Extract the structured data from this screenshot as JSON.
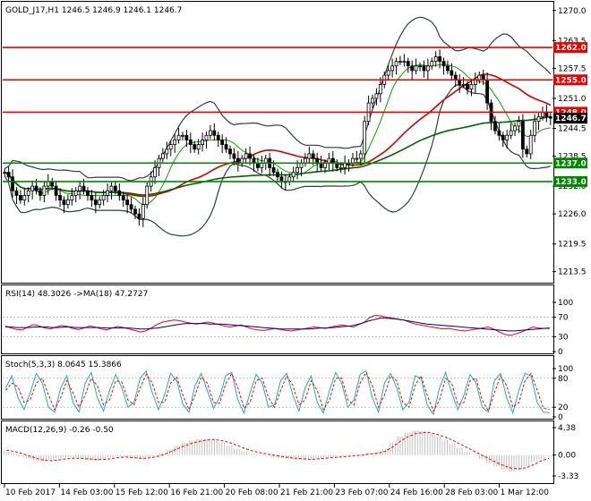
{
  "colors": {
    "frame": "#000000",
    "candle": "#000000",
    "bollinger": "#2f3f3f",
    "ma_fast": "#d40000",
    "ma_slow": "#00aa00",
    "ma_long": "#006600",
    "resistance": "#ee0000",
    "support": "#008800",
    "rsi": "#ff0000",
    "rsi_ma": "#000080",
    "stoch_main": "#20b2aa",
    "stoch_signal": "#ff0000",
    "macd_hist": "#c0c0c0",
    "macd_signal": "#ff0000",
    "current_price_tag": "#000000"
  },
  "chart_data": [
    {
      "type": "line",
      "panel": "price",
      "title": "GOLD_J17,H1  1246.5 1246.9 1246.1 1246.7",
      "ylim": [
        1211.5,
        1271.5
      ],
      "y_ticks": [
        {
          "value": 1270.0,
          "label": "1270.0"
        },
        {
          "value": 1263.5,
          "label": "1263.5"
        },
        {
          "value": 1257.5,
          "label": "1257.5"
        },
        {
          "value": 1251.0,
          "label": "1251.0"
        },
        {
          "value": 1244.5,
          "label": "1244.5"
        },
        {
          "value": 1238.5,
          "label": "1238.5"
        },
        {
          "value": 1232.0,
          "label": "1232.0"
        },
        {
          "value": 1226.0,
          "label": "1226.0"
        },
        {
          "value": 1219.5,
          "label": "1219.5"
        },
        {
          "value": 1213.5,
          "label": "1213.5"
        }
      ],
      "levels": [
        {
          "value": 1262.0,
          "label": "1262.0",
          "kind": "resistance"
        },
        {
          "value": 1255.0,
          "label": "1255.0",
          "kind": "resistance"
        },
        {
          "value": 1248.0,
          "label": "1248.0",
          "kind": "resistance"
        },
        {
          "value": 1237.0,
          "label": "1237.0",
          "kind": "support"
        },
        {
          "value": 1233.0,
          "label": "1233.0",
          "kind": "support"
        }
      ],
      "current_price": {
        "value": 1246.7,
        "label": "1246.7"
      },
      "series": [
        {
          "key": "close",
          "values": [
            1235,
            1234,
            1231,
            1230,
            1229,
            1230,
            1231,
            1232,
            1231,
            1230,
            1232,
            1233,
            1232,
            1230,
            1229,
            1228,
            1229,
            1230,
            1231,
            1232,
            1231,
            1230,
            1229,
            1228,
            1229,
            1230,
            1231,
            1232,
            1231,
            1230,
            1229,
            1228,
            1227,
            1226,
            1225,
            1228,
            1232,
            1234,
            1236,
            1238,
            1239,
            1240,
            1241,
            1242,
            1243,
            1243,
            1242,
            1241,
            1240,
            1241,
            1242,
            1243,
            1244,
            1243,
            1242,
            1241,
            1240,
            1239,
            1238,
            1237,
            1238,
            1239,
            1238,
            1237,
            1236,
            1237,
            1238,
            1236,
            1235,
            1234,
            1233,
            1233,
            1234,
            1235,
            1236,
            1237,
            1238,
            1239,
            1238,
            1237,
            1236,
            1237,
            1238,
            1237,
            1236,
            1236,
            1237,
            1237,
            1238,
            1238,
            1239,
            1246,
            1250,
            1251,
            1252,
            1254,
            1256,
            1257,
            1258,
            1259,
            1259,
            1259,
            1258,
            1257,
            1258,
            1258,
            1257,
            1258,
            1259,
            1260,
            1259,
            1258,
            1257,
            1256,
            1255,
            1254,
            1254,
            1253,
            1254,
            1255,
            1256,
            1255,
            1250,
            1246,
            1244,
            1243,
            1242,
            1243,
            1244,
            1245,
            1246,
            1240,
            1239,
            1243,
            1246,
            1247,
            1248,
            1247,
            1246.7
          ]
        }
      ]
    },
    {
      "type": "line",
      "panel": "rsi",
      "title": "RSI(14) 48.3026  ->MA(18) 47.2727",
      "ylim": [
        0,
        100
      ],
      "y_ticks": [
        {
          "value": 100,
          "label": "100"
        },
        {
          "value": 70,
          "label": "70"
        },
        {
          "value": 30,
          "label": "30"
        },
        {
          "value": 0,
          "label": "0"
        }
      ],
      "series": [
        {
          "key": "rsi",
          "values": [
            52,
            48,
            45,
            44,
            50,
            55,
            52,
            48,
            46,
            50,
            53,
            51,
            47,
            45,
            48,
            52,
            50,
            46,
            44,
            48,
            51,
            49,
            46,
            43,
            40,
            42,
            48,
            55,
            60,
            62,
            64,
            63,
            60,
            58,
            56,
            58,
            60,
            58,
            55,
            52,
            50,
            52,
            54,
            50,
            46,
            44,
            43,
            45,
            47,
            45,
            43,
            42,
            44,
            46,
            48,
            50,
            49,
            47,
            50,
            52,
            54,
            52,
            50,
            55,
            60,
            70,
            74,
            72,
            70,
            68,
            66,
            64,
            60,
            56,
            54,
            52,
            50,
            48,
            46,
            47,
            45,
            43,
            42,
            44,
            46,
            48,
            50,
            46,
            40,
            35,
            33,
            36,
            40,
            45,
            50,
            48,
            47,
            48.3
          ]
        },
        {
          "key": "rsi_ma",
          "values": [
            50,
            50,
            49,
            49,
            49,
            50,
            50,
            50,
            49,
            49,
            50,
            50,
            49,
            49,
            49,
            49,
            49,
            48,
            48,
            48,
            48,
            48,
            47,
            46,
            46,
            47,
            48,
            50,
            52,
            54,
            56,
            57,
            57,
            57,
            57,
            56,
            56,
            56,
            55,
            54,
            53,
            52,
            51,
            50,
            49,
            48,
            47,
            46,
            46,
            46,
            46,
            46,
            46,
            47,
            48,
            48,
            49,
            50,
            51,
            52,
            55,
            58,
            62,
            65,
            68,
            68,
            67,
            66,
            64,
            62,
            60,
            58,
            56,
            55,
            54,
            53,
            52,
            51,
            50,
            49,
            48,
            47,
            46,
            45,
            44,
            43,
            42,
            42,
            43,
            44,
            45,
            46,
            47,
            47.27
          ]
        }
      ]
    },
    {
      "type": "line",
      "panel": "stochastic",
      "title": "Stoch(5,3,3) 8.0645 15.3866",
      "ylim": [
        0,
        100
      ],
      "y_ticks": [
        {
          "value": 100,
          "label": "100"
        },
        {
          "value": 80,
          "label": "80"
        },
        {
          "value": 20,
          "label": "20"
        },
        {
          "value": 0,
          "label": "0"
        }
      ],
      "series": [
        {
          "key": "stoch_main",
          "values": [
            60,
            85,
            40,
            15,
            50,
            90,
            70,
            20,
            10,
            60,
            85,
            30,
            10,
            70,
            92,
            40,
            12,
            55,
            88,
            60,
            20,
            30,
            80,
            95,
            50,
            15,
            45,
            90,
            75,
            25,
            10,
            65,
            90,
            55,
            18,
            40,
            85,
            92,
            35,
            8,
            50,
            88,
            70,
            20,
            25,
            75,
            90,
            45,
            12,
            60,
            85,
            30,
            8,
            55,
            92,
            70,
            20,
            35,
            88,
            95,
            40,
            10,
            70,
            90,
            60,
            15,
            30,
            85,
            80,
            25,
            5,
            60,
            92,
            50,
            15,
            45,
            88,
            70,
            20,
            10,
            75,
            90,
            40,
            8,
            55,
            90,
            85,
            30,
            10,
            8.06
          ]
        },
        {
          "key": "stoch_signal",
          "values": [
            55,
            70,
            62,
            30,
            35,
            70,
            80,
            45,
            15,
            40,
            75,
            50,
            20,
            45,
            80,
            65,
            25,
            35,
            75,
            72,
            35,
            25,
            60,
            88,
            70,
            30,
            30,
            70,
            82,
            45,
            15,
            45,
            82,
            70,
            30,
            28,
            68,
            90,
            60,
            18,
            30,
            75,
            80,
            40,
            20,
            55,
            85,
            65,
            25,
            35,
            75,
            55,
            15,
            35,
            80,
            80,
            35,
            25,
            70,
            92,
            65,
            20,
            45,
            85,
            75,
            30,
            20,
            65,
            85,
            45,
            12,
            35,
            80,
            70,
            25,
            30,
            75,
            80,
            35,
            12,
            50,
            85,
            65,
            20,
            30,
            75,
            90,
            55,
            18,
            15.39
          ]
        }
      ]
    },
    {
      "type": "bar",
      "panel": "macd",
      "title": "MACD(12,26,9) -0.26 -0.50",
      "ylim": [
        -3.33,
        4.38
      ],
      "y_ticks": [
        {
          "value": 4.38,
          "label": "4.38"
        },
        {
          "value": 0.0,
          "label": "0.00"
        },
        {
          "value": -3.33,
          "label": "-3.33"
        }
      ],
      "series": [
        {
          "key": "macd_hist",
          "values": [
            0.6,
            0.3,
            -0.2,
            -0.6,
            -0.9,
            -1.0,
            -0.8,
            -0.5,
            -0.3,
            -0.4,
            -0.6,
            -0.8,
            -0.9,
            -0.7,
            -0.4,
            -0.2,
            -0.3,
            -0.5,
            -0.6,
            -0.4,
            -0.2,
            0.3,
            0.9,
            1.5,
            2.0,
            2.3,
            2.5,
            2.6,
            2.4,
            2.0,
            1.5,
            1.0,
            0.6,
            0.3,
            0.1,
            -0.1,
            -0.3,
            -0.5,
            -0.6,
            -0.7,
            -0.8,
            -0.7,
            -0.5,
            -0.4,
            -0.3,
            -0.2,
            -0.1,
            0.1,
            0.2,
            0.3,
            0.5,
            1.0,
            2.0,
            3.0,
            3.6,
            3.9,
            3.8,
            3.5,
            3.0,
            2.4,
            1.8,
            1.1,
            0.5,
            0.0,
            -0.6,
            -1.2,
            -1.8,
            -2.3,
            -2.6,
            -2.4,
            -1.8,
            -1.0,
            -0.6,
            -0.26
          ]
        },
        {
          "key": "macd_signal",
          "values": [
            0.8,
            0.6,
            0.3,
            -0.1,
            -0.5,
            -0.8,
            -0.9,
            -0.8,
            -0.6,
            -0.5,
            -0.5,
            -0.6,
            -0.7,
            -0.7,
            -0.6,
            -0.4,
            -0.3,
            -0.4,
            -0.5,
            -0.5,
            -0.3,
            0.0,
            0.5,
            1.0,
            1.5,
            1.9,
            2.2,
            2.4,
            2.5,
            2.3,
            2.0,
            1.6,
            1.1,
            0.7,
            0.4,
            0.2,
            0.0,
            -0.2,
            -0.4,
            -0.5,
            -0.6,
            -0.7,
            -0.6,
            -0.5,
            -0.4,
            -0.3,
            -0.2,
            -0.1,
            0.0,
            0.2,
            0.3,
            0.6,
            1.3,
            2.2,
            2.9,
            3.4,
            3.6,
            3.6,
            3.3,
            2.9,
            2.4,
            1.8,
            1.2,
            0.6,
            0.0,
            -0.6,
            -1.2,
            -1.7,
            -2.1,
            -2.2,
            -2.0,
            -1.5,
            -0.9,
            -0.5
          ]
        }
      ]
    }
  ],
  "x_axis": {
    "labels": [
      "10 Feb 2017",
      "14 Feb 03:00",
      "15 Feb 12:00",
      "16 Feb 21:00",
      "20 Feb 08:00",
      "21 Feb 21:00",
      "23 Feb 07:00",
      "24 Feb 16:00",
      "28 Feb 03:00",
      "1 Mar 12:00"
    ]
  }
}
